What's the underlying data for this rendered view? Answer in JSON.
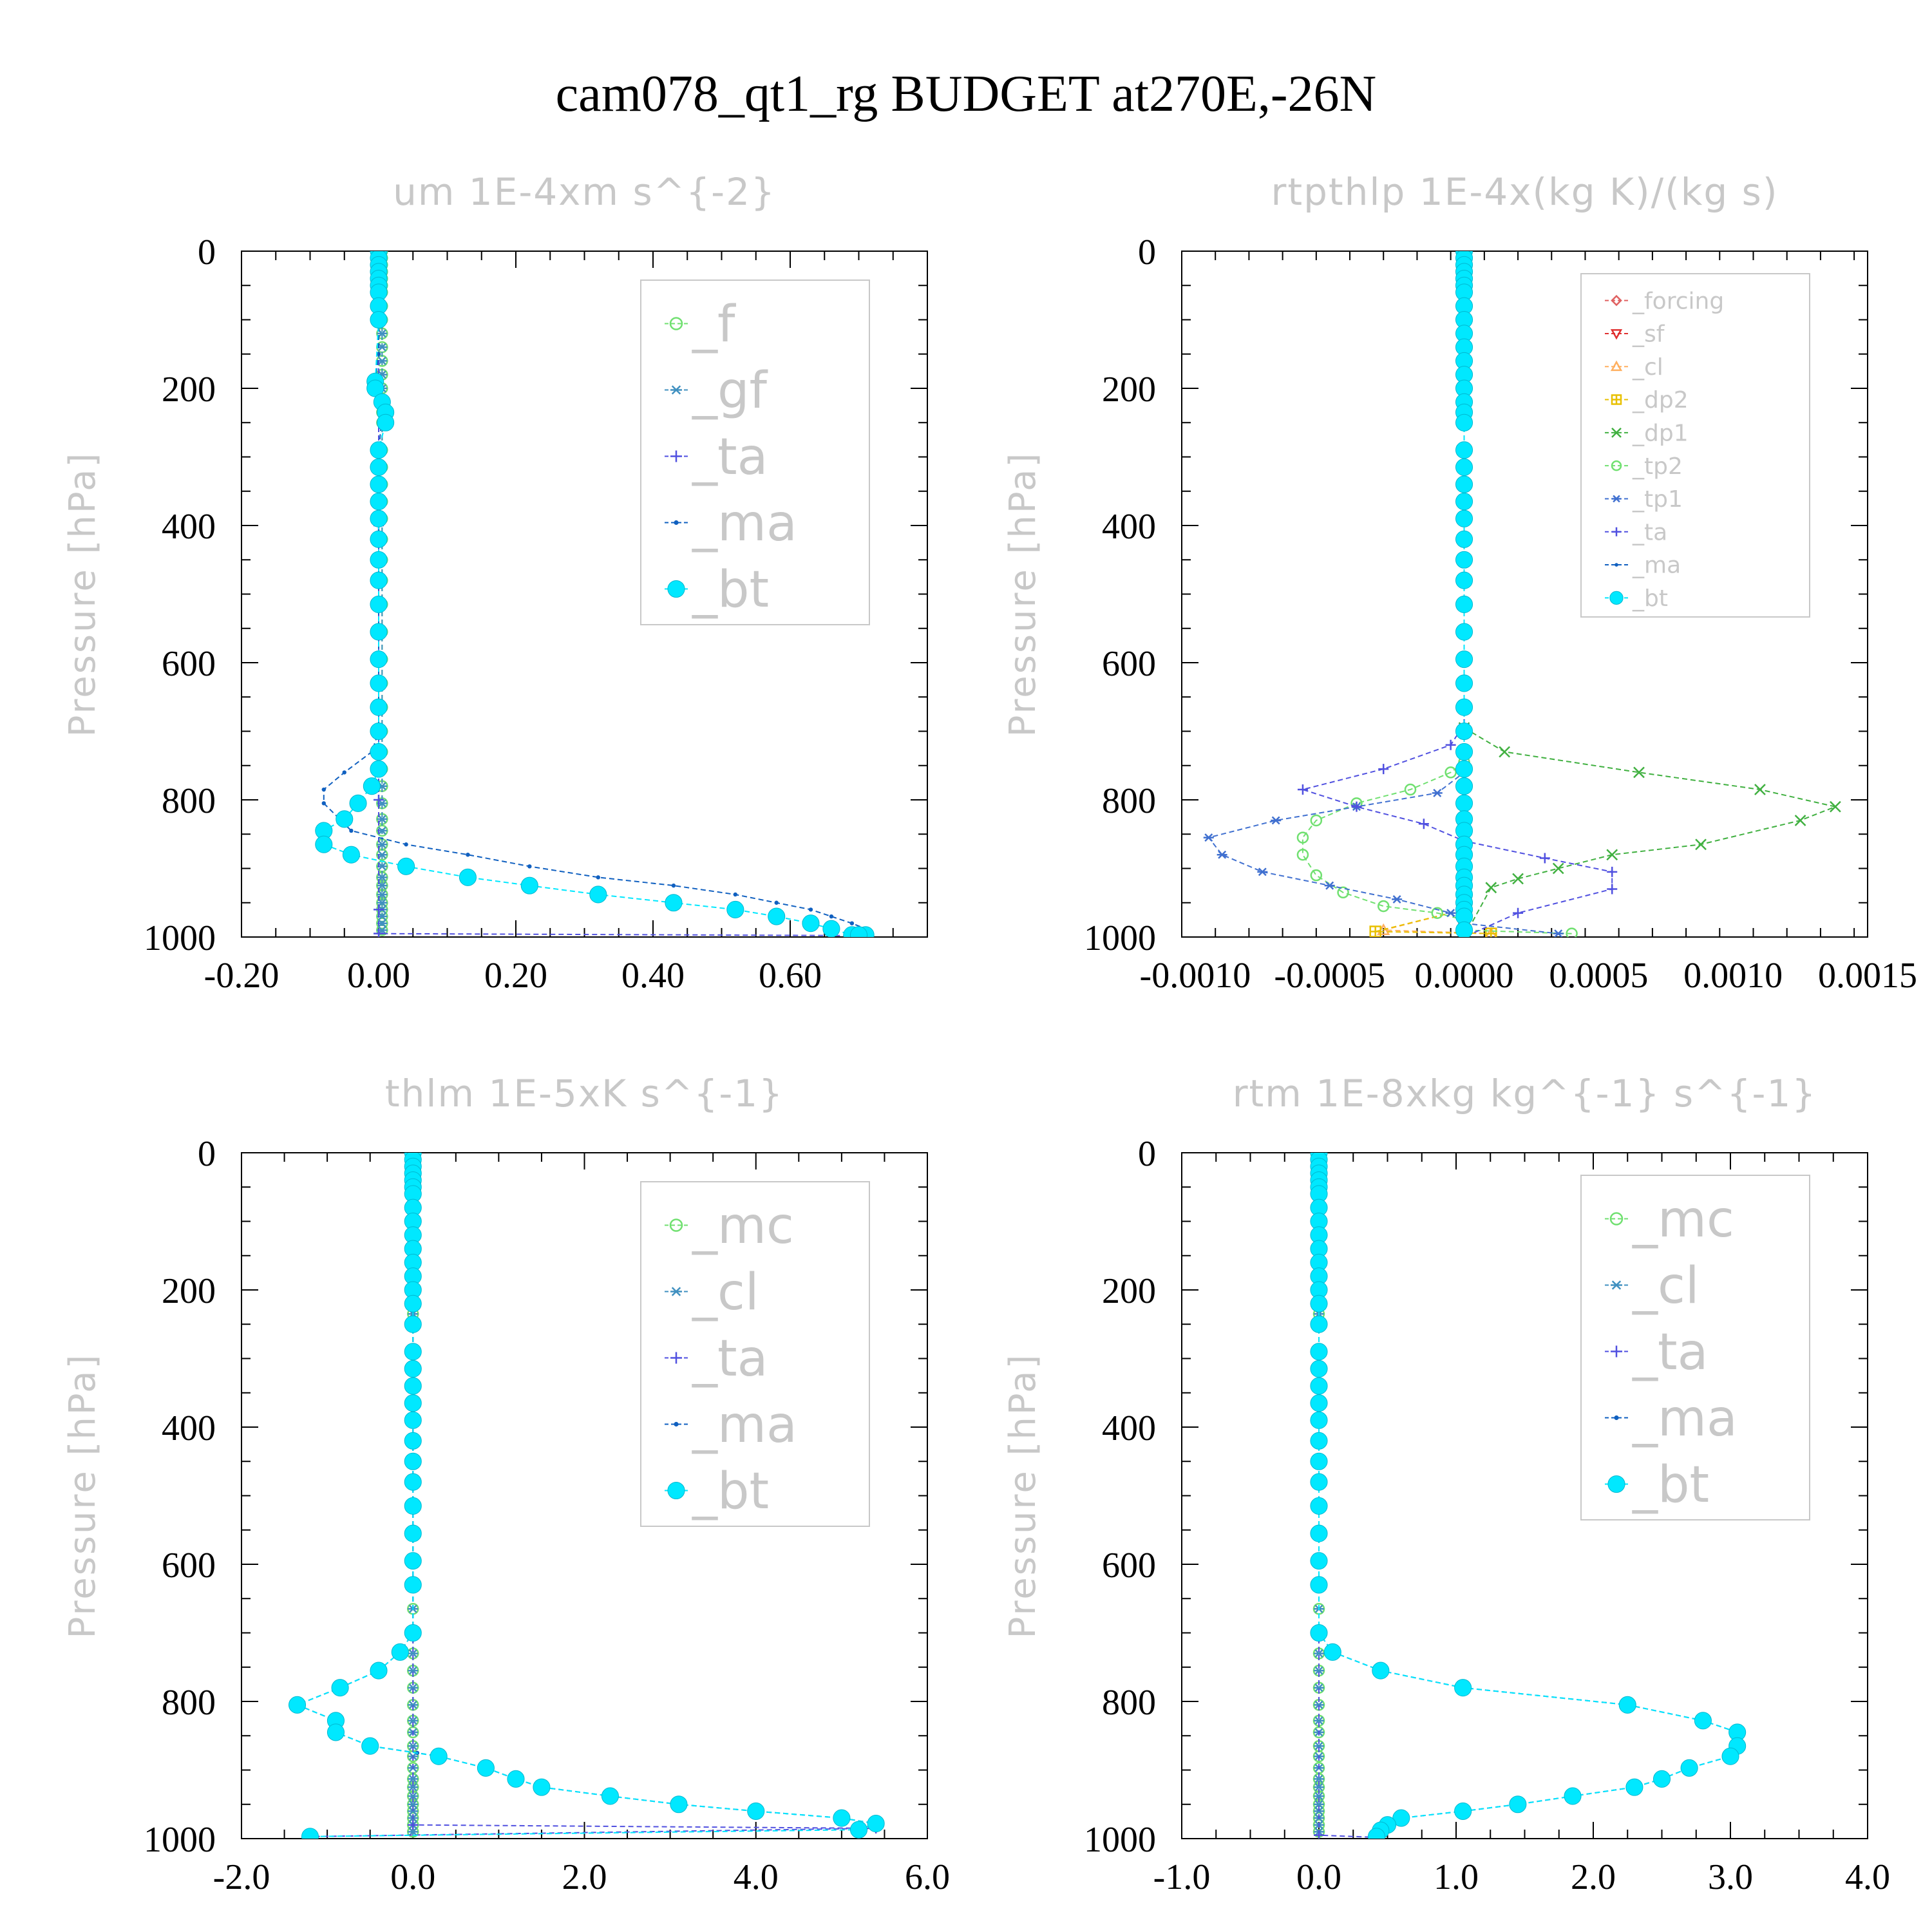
{
  "figure": {
    "title": "cam078_qt1_rg  BUDGET at270E,-26N"
  },
  "colors": {
    "forcing": "#e06060",
    "sf": "#e03030",
    "cl_rt": "#ffb060",
    "dp2": "#e8c000",
    "dp1": "#40b040",
    "tp2": "#70e070",
    "tp1": "#4070d0",
    "ta": "#5050e0",
    "ma": "#1060c0",
    "bt": "#00e8ff",
    "f": "#70e070",
    "gf": "#4090c0",
    "mc": "#70e070",
    "cl": "#4090c0"
  },
  "chart_data": [
    {
      "type": "line",
      "title": "um  1E-4xm s^{-2}",
      "ylabel": "Pressure [hPa]",
      "xticks": [
        "-0.20",
        "0.00",
        "0.20",
        "0.40",
        "0.60"
      ],
      "xtick_values": [
        -0.2,
        0.0,
        0.2,
        0.4,
        0.6
      ],
      "yticks": [
        "0",
        "200",
        "400",
        "600",
        "800",
        "1000"
      ],
      "xlim": [
        -0.2,
        0.8
      ],
      "ylim": [
        0,
        1000
      ],
      "y_inverted": true,
      "grid": false,
      "legend_placement": "top-right",
      "series": [
        {
          "name": "_f",
          "color": "#70e070",
          "marker": "circle-open",
          "x": [
            0.005,
            0.005
          ],
          "y": [
            0,
            1000
          ]
        },
        {
          "name": "_gf",
          "color": "#4090c0",
          "marker": "asterisk",
          "x": [
            0.005,
            0.005
          ],
          "y": [
            0,
            1000
          ]
        },
        {
          "name": "_ta",
          "color": "#5050e0",
          "marker": "plus",
          "x": [
            0.0,
            0.0,
            0.0,
            0.0,
            0.0,
            0.71
          ],
          "y": [
            0,
            400,
            800,
            960,
            995,
            998
          ]
        },
        {
          "name": "_ma",
          "color": "#1060c0",
          "marker": "dot",
          "x": [
            0.0,
            0.0,
            -0.005,
            0.005,
            0.0,
            0.0,
            -0.01,
            -0.05,
            -0.08,
            -0.08,
            -0.04,
            0.04,
            0.13,
            0.22,
            0.32,
            0.43,
            0.52,
            0.58,
            0.63,
            0.66,
            0.69,
            0.71,
            0.7
          ],
          "y": [
            0,
            150,
            190,
            230,
            300,
            700,
            730,
            760,
            785,
            805,
            845,
            865,
            880,
            897,
            913,
            925,
            938,
            950,
            960,
            970,
            980,
            988,
            997
          ]
        },
        {
          "name": "_bt",
          "color": "#00e8ff",
          "marker": "filled-circle",
          "x": [
            0.0,
            0.0,
            0.0,
            0.0,
            0.0,
            0.0,
            0.0,
            0.0,
            0.0,
            -0.005,
            -0.005,
            0.005,
            0.01,
            0.01,
            0.0,
            0.0,
            0.0,
            0.0,
            0.0,
            0.0,
            0.0,
            0.0,
            0.0,
            0.0,
            0.0,
            0.0,
            0.0,
            0.0,
            0.0,
            0.0,
            -0.01,
            -0.03,
            -0.05,
            -0.08,
            -0.08,
            -0.04,
            0.04,
            0.13,
            0.22,
            0.32,
            0.43,
            0.52,
            0.58,
            0.63,
            0.66,
            0.69,
            0.71,
            0.7
          ],
          "y": [
            0,
            10,
            20,
            30,
            40,
            50,
            60,
            80,
            100,
            190,
            200,
            220,
            235,
            250,
            290,
            315,
            340,
            365,
            390,
            420,
            450,
            480,
            515,
            555,
            595,
            630,
            665,
            700,
            730,
            755,
            780,
            805,
            828,
            845,
            865,
            880,
            897,
            913,
            925,
            938,
            950,
            960,
            970,
            980,
            988,
            997,
            997,
            997
          ]
        }
      ]
    },
    {
      "type": "line",
      "title": "rtpthlp  1E-4x(kg K)/(kg s)",
      "ylabel": "Pressure [hPa]",
      "xticks": [
        "-0.0010",
        "-0.0005",
        "0.0000",
        "0.0005",
        "0.0010",
        "0.0015"
      ],
      "xtick_values": [
        -0.001,
        -0.0005,
        0.0,
        0.0005,
        0.001,
        0.0015
      ],
      "yticks": [
        "0",
        "200",
        "400",
        "600",
        "800",
        "1000"
      ],
      "xlim": [
        -0.00105,
        0.0015
      ],
      "ylim": [
        0,
        1000
      ],
      "y_inverted": true,
      "grid": false,
      "legend_placement": "top-right",
      "series": [
        {
          "name": "_forcing",
          "color": "#e06060",
          "marker": "diamond-open",
          "x": [
            0,
            0
          ],
          "y": [
            0,
            1000
          ]
        },
        {
          "name": "_sf",
          "color": "#e03030",
          "marker": "triangle-down",
          "x": [
            0,
            0
          ],
          "y": [
            0,
            1000
          ]
        },
        {
          "name": "_cl",
          "color": "#ffb060",
          "marker": "triangle-up",
          "x": [
            0,
            0,
            -0.0003,
            0.0001
          ],
          "y": [
            0,
            960,
            990,
            995
          ]
        },
        {
          "name": "_dp2",
          "color": "#e8c000",
          "marker": "square-plus",
          "x": [
            0,
            0,
            -0.00033,
            0.0001
          ],
          "y": [
            0,
            960,
            992,
            995
          ]
        },
        {
          "name": "_dp1",
          "color": "#40b040",
          "marker": "x",
          "x": [
            0,
            0,
            0.00015,
            0.00065,
            0.0011,
            0.00138,
            0.00125,
            0.00088,
            0.00055,
            0.00035,
            0.0002,
            0.0001,
            0.0
          ],
          "y": [
            0,
            695,
            730,
            760,
            785,
            810,
            830,
            865,
            880,
            900,
            915,
            928,
            1000
          ]
        },
        {
          "name": "_tp2",
          "color": "#70e070",
          "marker": "circle-open",
          "x": [
            0,
            0,
            -5e-05,
            -0.0002,
            -0.0004,
            -0.00055,
            -0.0006,
            -0.0006,
            -0.00055,
            -0.00045,
            -0.0003,
            -0.0001,
            0.0,
            0.0,
            0.0004
          ],
          "y": [
            0,
            745,
            760,
            785,
            805,
            830,
            855,
            880,
            910,
            935,
            955,
            965,
            975,
            990,
            995
          ]
        },
        {
          "name": "_tp1",
          "color": "#4070d0",
          "marker": "asterisk",
          "x": [
            0,
            0,
            -0.0001,
            -0.0004,
            -0.0007,
            -0.00095,
            -0.0009,
            -0.00075,
            -0.0005,
            -0.00025,
            -5e-05,
            0.0,
            0.00035
          ],
          "y": [
            0,
            760,
            790,
            810,
            830,
            855,
            880,
            905,
            925,
            945,
            965,
            980,
            995
          ]
        },
        {
          "name": "_ta",
          "color": "#5050e0",
          "marker": "plus",
          "x": [
            0,
            0,
            -5e-05,
            -0.0003,
            -0.0006,
            -0.0004,
            -0.00015,
            0.0,
            0.0003,
            0.00055,
            0.00055,
            0.0002,
            0.0
          ],
          "y": [
            0,
            690,
            720,
            755,
            785,
            810,
            835,
            860,
            885,
            905,
            930,
            965,
            1000
          ]
        },
        {
          "name": "_ma",
          "color": "#1060c0",
          "marker": "dot",
          "x": [
            0,
            0
          ],
          "y": [
            0,
            1000
          ]
        },
        {
          "name": "_bt",
          "color": "#00e8ff",
          "marker": "filled-circle",
          "x": [
            0,
            0,
            0,
            0,
            0,
            0,
            0,
            0,
            0,
            0,
            0,
            0,
            0,
            0,
            0,
            0,
            0,
            0,
            0,
            0,
            0,
            0,
            0,
            0,
            0,
            0,
            0,
            0,
            0,
            0,
            0,
            0,
            0,
            0,
            0,
            0,
            0,
            0,
            0,
            0,
            0,
            0,
            0,
            0,
            0,
            0,
            0
          ],
          "y": [
            0,
            10,
            20,
            30,
            40,
            50,
            60,
            80,
            100,
            120,
            140,
            160,
            180,
            200,
            220,
            235,
            250,
            290,
            315,
            340,
            365,
            390,
            420,
            450,
            480,
            515,
            555,
            595,
            630,
            665,
            700,
            730,
            755,
            780,
            805,
            828,
            845,
            865,
            880,
            897,
            913,
            925,
            938,
            950,
            960,
            970,
            990
          ]
        }
      ]
    },
    {
      "type": "line",
      "title": "thlm  1E-5xK s^{-1}",
      "ylabel": "Pressure [hPa]",
      "xticks": [
        "-2.0",
        "0.0",
        "2.0",
        "4.0",
        "6.0"
      ],
      "xtick_values": [
        -2.0,
        0.0,
        2.0,
        4.0,
        6.0
      ],
      "yticks": [
        "0",
        "200",
        "400",
        "600",
        "800",
        "1000"
      ],
      "xlim": [
        -2.0,
        6.0
      ],
      "ylim": [
        0,
        1000
      ],
      "y_inverted": true,
      "grid": false,
      "legend_placement": "top-right",
      "series": [
        {
          "name": "_mc",
          "color": "#70e070",
          "marker": "circle-open",
          "x": [
            0.0,
            0.0
          ],
          "y": [
            0,
            1000
          ]
        },
        {
          "name": "_cl",
          "color": "#4090c0",
          "marker": "asterisk",
          "x": [
            0.0,
            0.0
          ],
          "y": [
            0,
            1000
          ]
        },
        {
          "name": "_ta",
          "color": "#5050e0",
          "marker": "plus",
          "x": [
            0.0,
            0.0,
            5.4,
            -1.2
          ],
          "y": [
            0,
            980,
            985,
            997
          ]
        },
        {
          "name": "_ma",
          "color": "#1060c0",
          "marker": "dot",
          "x": [
            0.0,
            0.0,
            -0.15,
            -0.4,
            -0.85,
            -1.35,
            -0.9,
            -0.9,
            -0.5,
            0.05,
            0.3,
            0.85,
            1.2,
            1.5,
            2.3,
            3.1,
            4.0,
            5.0,
            5.4,
            5.2
          ],
          "y": [
            0,
            700,
            728,
            755,
            780,
            805,
            828,
            845,
            865,
            875,
            880,
            897,
            913,
            925,
            938,
            950,
            960,
            970,
            978,
            987
          ]
        },
        {
          "name": "_bt",
          "color": "#00e8ff",
          "marker": "filled-circle",
          "x": [
            0,
            0,
            0,
            0,
            0,
            0,
            0,
            0,
            0,
            0,
            0,
            0,
            0,
            0,
            0,
            0,
            0,
            0,
            0,
            0,
            0,
            0,
            0,
            0,
            0,
            0,
            0,
            0,
            0,
            -0.15,
            -0.4,
            -0.85,
            -1.35,
            -0.9,
            -0.9,
            -0.5,
            0.3,
            0.85,
            1.2,
            1.5,
            2.3,
            3.1,
            4.0,
            5.0,
            5.4,
            5.2,
            -1.2
          ],
          "y": [
            0,
            10,
            20,
            30,
            40,
            50,
            60,
            80,
            100,
            120,
            140,
            160,
            180,
            200,
            220,
            250,
            290,
            315,
            340,
            365,
            390,
            420,
            450,
            480,
            515,
            555,
            595,
            630,
            700,
            728,
            755,
            780,
            805,
            828,
            845,
            865,
            880,
            897,
            913,
            925,
            938,
            950,
            960,
            970,
            978,
            987,
            997
          ]
        }
      ]
    },
    {
      "type": "line",
      "title": "rtm  1E-8xkg kg^{-1} s^{-1}",
      "ylabel": "Pressure [hPa]",
      "xticks": [
        "-1.0",
        "0.0",
        "1.0",
        "2.0",
        "3.0",
        "4.0"
      ],
      "xtick_values": [
        -1.0,
        0.0,
        1.0,
        2.0,
        3.0,
        4.0
      ],
      "yticks": [
        "0",
        "200",
        "400",
        "600",
        "800",
        "1000"
      ],
      "xlim": [
        -1.0,
        4.0
      ],
      "ylim": [
        0,
        1000
      ],
      "y_inverted": true,
      "grid": false,
      "legend_placement": "top-right",
      "series": [
        {
          "name": "_mc",
          "color": "#70e070",
          "marker": "circle-open",
          "x": [
            0.0,
            0.0
          ],
          "y": [
            0,
            1000
          ]
        },
        {
          "name": "_cl",
          "color": "#4090c0",
          "marker": "asterisk",
          "x": [
            0.0,
            0.0
          ],
          "y": [
            0,
            1000
          ]
        },
        {
          "name": "_ta",
          "color": "#5050e0",
          "marker": "plus",
          "x": [
            0.0,
            0.0,
            0.4
          ],
          "y": [
            0,
            995,
            998
          ]
        },
        {
          "name": "_ma",
          "color": "#1060c0",
          "marker": "dot",
          "x": [
            0.0,
            0.0,
            0.1,
            0.45,
            1.05,
            2.25,
            2.8,
            3.05,
            3.05,
            3.0,
            2.7,
            2.5,
            2.3,
            1.85,
            1.45,
            1.05,
            0.6,
            0.5,
            0.45,
            0.42
          ],
          "y": [
            0,
            700,
            728,
            755,
            780,
            805,
            828,
            845,
            865,
            880,
            897,
            913,
            925,
            938,
            950,
            960,
            970,
            980,
            988,
            997
          ]
        },
        {
          "name": "_bt",
          "color": "#00e8ff",
          "marker": "filled-circle",
          "x": [
            0,
            0,
            0,
            0,
            0,
            0,
            0,
            0,
            0,
            0,
            0,
            0,
            0,
            0,
            0,
            0,
            0,
            0,
            0,
            0,
            0,
            0,
            0,
            0,
            0,
            0,
            0,
            0,
            0,
            0.1,
            0.45,
            1.05,
            2.25,
            2.8,
            3.05,
            3.05,
            3.0,
            2.7,
            2.5,
            2.3,
            1.85,
            1.45,
            1.05,
            0.6,
            0.5,
            0.45,
            0.42
          ],
          "y": [
            0,
            10,
            20,
            30,
            40,
            50,
            60,
            80,
            100,
            120,
            140,
            160,
            180,
            200,
            220,
            250,
            290,
            315,
            340,
            365,
            390,
            420,
            450,
            480,
            515,
            555,
            595,
            630,
            700,
            728,
            755,
            780,
            805,
            828,
            845,
            865,
            880,
            897,
            913,
            925,
            938,
            950,
            960,
            970,
            980,
            988,
            997
          ]
        }
      ]
    }
  ]
}
